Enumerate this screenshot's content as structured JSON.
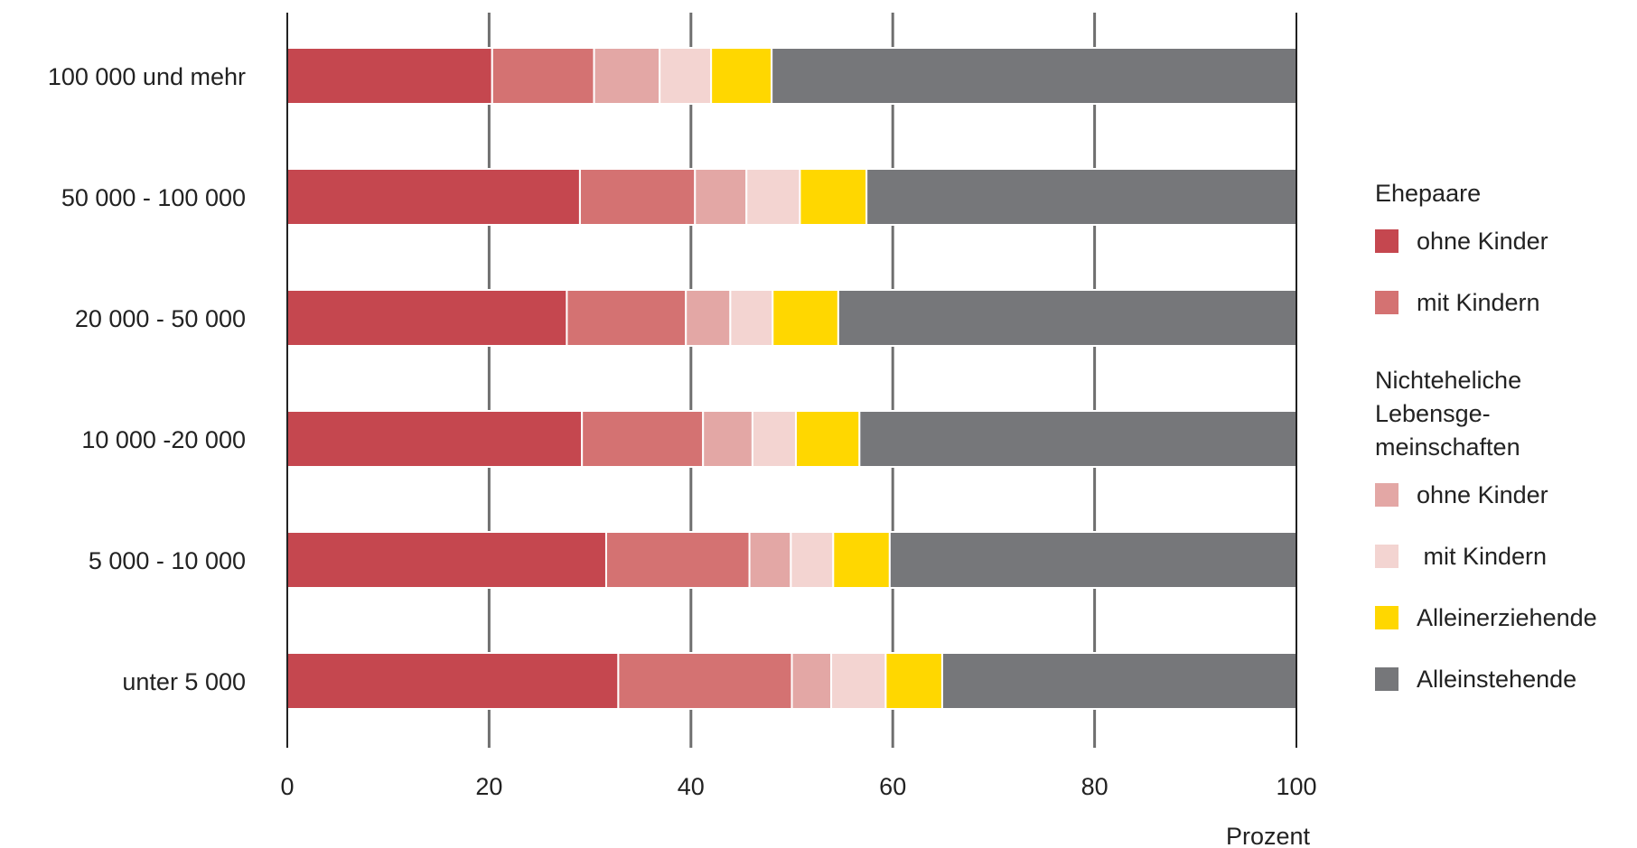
{
  "chart_data": {
    "type": "bar",
    "orientation": "horizontal",
    "stacked": true,
    "x_unit_label": "Prozent",
    "xlim": [
      0,
      100
    ],
    "x_ticks": [
      0,
      20,
      40,
      60,
      80,
      100
    ],
    "grid": true,
    "legend_position": "right",
    "categories": [
      "100 000 und mehr",
      "50 000 - 100 000",
      "20 000 - 50 000",
      "10 000 -20 000",
      "5 000 - 10 000",
      "unter 5 000"
    ],
    "series": [
      {
        "key": "ehe_ohne",
        "color": "#c5474f",
        "values": [
          20.3,
          29.0,
          27.7,
          29.2,
          31.6,
          32.8
        ]
      },
      {
        "key": "ehe_mit",
        "color": "#d47272",
        "values": [
          10.1,
          11.4,
          11.8,
          12.0,
          14.2,
          17.2
        ]
      },
      {
        "key": "nel_ohne",
        "color": "#e3a7a5",
        "values": [
          6.5,
          5.1,
          4.4,
          4.9,
          4.1,
          3.9
        ]
      },
      {
        "key": "nel_mit",
        "color": "#f3d4d1",
        "values": [
          5.1,
          5.3,
          4.2,
          4.3,
          4.2,
          5.4
        ]
      },
      {
        "key": "allein_erz",
        "color": "#ffd700",
        "values": [
          6.0,
          6.6,
          6.5,
          6.3,
          5.6,
          5.6
        ]
      },
      {
        "key": "allein_st",
        "color": "#76777a",
        "values": [
          52.0,
          42.6,
          45.4,
          43.3,
          40.3,
          35.1
        ]
      }
    ]
  },
  "legend": {
    "groups": [
      {
        "title": "Ehepaare",
        "items": [
          {
            "label": "ohne Kinder",
            "color": "#c5474f"
          },
          {
            "label": "mit Kindern",
            "color": "#d47272"
          }
        ]
      },
      {
        "title_lines": [
          "Nichteheliche",
          "Lebensge-",
          "meinschaften"
        ],
        "items": [
          {
            "label": "ohne Kinder",
            "color": "#e3a7a5"
          },
          {
            "label": " mit Kindern",
            "color": "#f3d4d1"
          },
          {
            "label": "Alleinerziehende",
            "color": "#ffd700"
          },
          {
            "label": "Alleinstehende",
            "color": "#76777a"
          }
        ]
      }
    ]
  }
}
